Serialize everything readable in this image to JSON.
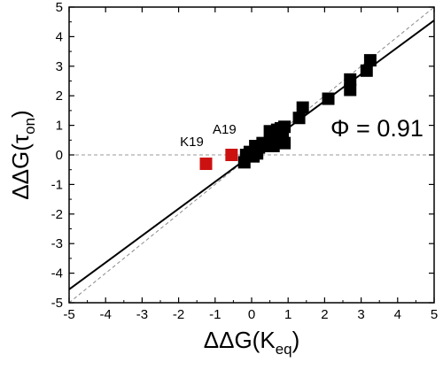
{
  "chart_data": {
    "type": "scatter",
    "xlim": [
      -5,
      5
    ],
    "ylim": [
      -5,
      5
    ],
    "x_ticks": [
      -5,
      -4,
      -3,
      -2,
      -1,
      0,
      1,
      2,
      3,
      4,
      5
    ],
    "y_ticks": [
      -5,
      -4,
      -3,
      -2,
      -1,
      0,
      1,
      2,
      3,
      4,
      5
    ],
    "xlabel": {
      "main": "ΔΔG(K",
      "sub": "eq",
      "close": ")"
    },
    "ylabel": {
      "main": "ΔΔG(τ",
      "sub": "on",
      "close": ")"
    },
    "phi_text": "Φ = 0.91",
    "fit_line": {
      "slope": 0.91,
      "intercept": 0.0,
      "style": "solid",
      "color": "#000000"
    },
    "reference_line": {
      "slope": 1.0,
      "intercept": 0.0,
      "style": "dashed",
      "color": "#8a8a8a"
    },
    "zero_line": {
      "y": 0,
      "style": "dashed",
      "color": "#9a9a9a"
    },
    "grid": false,
    "series": [
      {
        "color": "#000000",
        "marker": "square",
        "points": [
          [
            -0.2,
            -0.25
          ],
          [
            -0.15,
            0.0
          ],
          [
            -0.05,
            0.1
          ],
          [
            0.05,
            -0.05
          ],
          [
            0.1,
            0.3
          ],
          [
            0.15,
            0.05
          ],
          [
            0.2,
            0.25
          ],
          [
            0.3,
            0.4
          ],
          [
            0.45,
            0.3
          ],
          [
            0.5,
            0.8
          ],
          [
            0.55,
            0.45
          ],
          [
            0.6,
            0.3
          ],
          [
            0.65,
            0.6
          ],
          [
            0.7,
            0.85
          ],
          [
            0.75,
            0.5
          ],
          [
            0.8,
            0.9
          ],
          [
            0.85,
            0.7
          ],
          [
            0.9,
            0.95
          ],
          [
            0.9,
            0.4
          ],
          [
            1.3,
            1.25
          ],
          [
            1.4,
            1.6
          ],
          [
            2.1,
            1.9
          ],
          [
            2.7,
            2.2
          ],
          [
            2.7,
            2.55
          ],
          [
            3.15,
            2.85
          ],
          [
            3.25,
            3.2
          ]
        ]
      },
      {
        "color": "#cc1111",
        "marker": "square",
        "points": [
          [
            -1.25,
            -0.3
          ],
          [
            -0.55,
            0.0
          ]
        ]
      }
    ],
    "annotations": [
      {
        "text": "K19",
        "x": -1.25,
        "y": -0.3
      },
      {
        "text": "A19",
        "x": -0.55,
        "y": 0.0
      }
    ]
  }
}
